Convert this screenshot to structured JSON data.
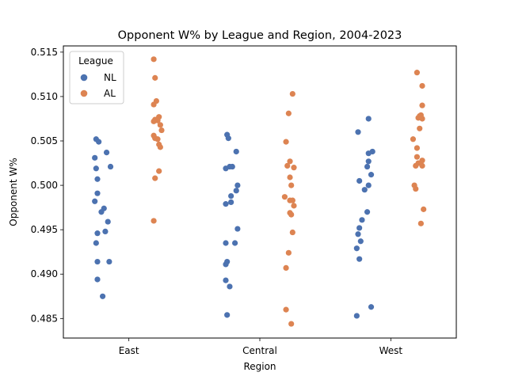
{
  "chart_data": {
    "type": "scatter",
    "subtype": "strip",
    "title": "Opponent W% by League and Region, 2004-2023",
    "xlabel": "Region",
    "ylabel": "Opponent W%",
    "categories": [
      "East",
      "Central",
      "West"
    ],
    "ylim": [
      0.4828,
      0.5157
    ],
    "yticks": [
      0.485,
      0.49,
      0.495,
      0.5,
      0.505,
      0.51,
      0.515
    ],
    "ytick_labels": [
      "0.485",
      "0.490",
      "0.495",
      "0.500",
      "0.505",
      "0.510",
      "0.515"
    ],
    "grid": false,
    "legend": {
      "title": "League",
      "position": "top-left"
    },
    "series": [
      {
        "name": "NL",
        "color": "#4c72b0",
        "points": [
          {
            "category": "East",
            "jitter": -0.05,
            "value": 0.5052
          },
          {
            "category": "East",
            "jitter": -0.03,
            "value": 0.5049
          },
          {
            "category": "East",
            "jitter": 0.03,
            "value": 0.5037
          },
          {
            "category": "East",
            "jitter": -0.06,
            "value": 0.5031
          },
          {
            "category": "East",
            "jitter": 0.06,
            "value": 0.5021
          },
          {
            "category": "East",
            "jitter": -0.05,
            "value": 0.5019
          },
          {
            "category": "East",
            "jitter": -0.04,
            "value": 0.5007
          },
          {
            "category": "East",
            "jitter": -0.04,
            "value": 0.4991
          },
          {
            "category": "East",
            "jitter": -0.06,
            "value": 0.4982
          },
          {
            "category": "East",
            "jitter": 0.01,
            "value": 0.4974
          },
          {
            "category": "East",
            "jitter": -0.01,
            "value": 0.497
          },
          {
            "category": "East",
            "jitter": 0.04,
            "value": 0.4959
          },
          {
            "category": "East",
            "jitter": 0.02,
            "value": 0.4948
          },
          {
            "category": "East",
            "jitter": -0.04,
            "value": 0.4946
          },
          {
            "category": "East",
            "jitter": -0.05,
            "value": 0.4935
          },
          {
            "category": "East",
            "jitter": -0.04,
            "value": 0.4914
          },
          {
            "category": "East",
            "jitter": 0.05,
            "value": 0.4914
          },
          {
            "category": "East",
            "jitter": -0.04,
            "value": 0.4894
          },
          {
            "category": "East",
            "jitter": 0.0,
            "value": 0.4875
          },
          {
            "category": "Central",
            "jitter": -0.05,
            "value": 0.5057
          },
          {
            "category": "Central",
            "jitter": -0.04,
            "value": 0.5053
          },
          {
            "category": "Central",
            "jitter": 0.02,
            "value": 0.5038
          },
          {
            "category": "Central",
            "jitter": -0.06,
            "value": 0.5019
          },
          {
            "category": "Central",
            "jitter": -0.03,
            "value": 0.5021
          },
          {
            "category": "Central",
            "jitter": -0.01,
            "value": 0.5021
          },
          {
            "category": "Central",
            "jitter": 0.03,
            "value": 0.5
          },
          {
            "category": "Central",
            "jitter": 0.02,
            "value": 0.4994
          },
          {
            "category": "Central",
            "jitter": -0.02,
            "value": 0.4988
          },
          {
            "category": "Central",
            "jitter": -0.02,
            "value": 0.4981
          },
          {
            "category": "Central",
            "jitter": -0.06,
            "value": 0.4979
          },
          {
            "category": "Central",
            "jitter": 0.03,
            "value": 0.4951
          },
          {
            "category": "Central",
            "jitter": -0.06,
            "value": 0.4935
          },
          {
            "category": "Central",
            "jitter": 0.01,
            "value": 0.4935
          },
          {
            "category": "Central",
            "jitter": -0.05,
            "value": 0.4914
          },
          {
            "category": "Central",
            "jitter": -0.06,
            "value": 0.4911
          },
          {
            "category": "Central",
            "jitter": -0.06,
            "value": 0.4893
          },
          {
            "category": "Central",
            "jitter": -0.03,
            "value": 0.4886
          },
          {
            "category": "Central",
            "jitter": -0.05,
            "value": 0.4854
          },
          {
            "category": "West",
            "jitter": 0.03,
            "value": 0.5075
          },
          {
            "category": "West",
            "jitter": -0.05,
            "value": 0.506
          },
          {
            "category": "West",
            "jitter": 0.06,
            "value": 0.5038
          },
          {
            "category": "West",
            "jitter": 0.03,
            "value": 0.5036
          },
          {
            "category": "West",
            "jitter": 0.03,
            "value": 0.5027
          },
          {
            "category": "West",
            "jitter": 0.02,
            "value": 0.5021
          },
          {
            "category": "West",
            "jitter": 0.05,
            "value": 0.5012
          },
          {
            "category": "West",
            "jitter": -0.04,
            "value": 0.5005
          },
          {
            "category": "West",
            "jitter": 0.03,
            "value": 0.5
          },
          {
            "category": "West",
            "jitter": 0.0,
            "value": 0.4995
          },
          {
            "category": "West",
            "jitter": 0.02,
            "value": 0.497
          },
          {
            "category": "West",
            "jitter": -0.02,
            "value": 0.4961
          },
          {
            "category": "West",
            "jitter": -0.04,
            "value": 0.4952
          },
          {
            "category": "West",
            "jitter": -0.05,
            "value": 0.4945
          },
          {
            "category": "West",
            "jitter": -0.03,
            "value": 0.4937
          },
          {
            "category": "West",
            "jitter": -0.06,
            "value": 0.4929
          },
          {
            "category": "West",
            "jitter": -0.04,
            "value": 0.4917
          },
          {
            "category": "West",
            "jitter": 0.05,
            "value": 0.4863
          },
          {
            "category": "West",
            "jitter": -0.06,
            "value": 0.4853
          }
        ]
      },
      {
        "name": "AL",
        "color": "#dd8452",
        "points": [
          {
            "category": "East",
            "jitter": -0.01,
            "value": 0.5142
          },
          {
            "category": "East",
            "jitter": 0.0,
            "value": 0.5121
          },
          {
            "category": "East",
            "jitter": 0.01,
            "value": 0.5095
          },
          {
            "category": "East",
            "jitter": -0.01,
            "value": 0.5091
          },
          {
            "category": "East",
            "jitter": 0.03,
            "value": 0.5077
          },
          {
            "category": "East",
            "jitter": 0.0,
            "value": 0.5074
          },
          {
            "category": "East",
            "jitter": 0.02,
            "value": 0.5073
          },
          {
            "category": "East",
            "jitter": -0.01,
            "value": 0.5072
          },
          {
            "category": "East",
            "jitter": 0.04,
            "value": 0.5068
          },
          {
            "category": "East",
            "jitter": 0.05,
            "value": 0.5062
          },
          {
            "category": "East",
            "jitter": -0.01,
            "value": 0.5056
          },
          {
            "category": "East",
            "jitter": 0.0,
            "value": 0.5053
          },
          {
            "category": "East",
            "jitter": 0.02,
            "value": 0.5052
          },
          {
            "category": "East",
            "jitter": 0.03,
            "value": 0.5046
          },
          {
            "category": "East",
            "jitter": 0.04,
            "value": 0.5043
          },
          {
            "category": "East",
            "jitter": 0.03,
            "value": 0.5016
          },
          {
            "category": "East",
            "jitter": 0.0,
            "value": 0.5008
          },
          {
            "category": "East",
            "jitter": -0.01,
            "value": 0.496
          },
          {
            "category": "Central",
            "jitter": 0.05,
            "value": 0.5103
          },
          {
            "category": "Central",
            "jitter": 0.02,
            "value": 0.5081
          },
          {
            "category": "Central",
            "jitter": 0.0,
            "value": 0.5049
          },
          {
            "category": "Central",
            "jitter": 0.03,
            "value": 0.5027
          },
          {
            "category": "Central",
            "jitter": 0.01,
            "value": 0.5022
          },
          {
            "category": "Central",
            "jitter": 0.06,
            "value": 0.502
          },
          {
            "category": "Central",
            "jitter": 0.03,
            "value": 0.5009
          },
          {
            "category": "Central",
            "jitter": 0.04,
            "value": 0.5
          },
          {
            "category": "Central",
            "jitter": -0.01,
            "value": 0.4987
          },
          {
            "category": "Central",
            "jitter": 0.05,
            "value": 0.4983
          },
          {
            "category": "Central",
            "jitter": 0.03,
            "value": 0.4983
          },
          {
            "category": "Central",
            "jitter": 0.06,
            "value": 0.4977
          },
          {
            "category": "Central",
            "jitter": 0.03,
            "value": 0.4969
          },
          {
            "category": "Central",
            "jitter": 0.04,
            "value": 0.4967
          },
          {
            "category": "Central",
            "jitter": 0.05,
            "value": 0.4947
          },
          {
            "category": "Central",
            "jitter": 0.02,
            "value": 0.4924
          },
          {
            "category": "Central",
            "jitter": 0.0,
            "value": 0.4907
          },
          {
            "category": "Central",
            "jitter": 0.0,
            "value": 0.486
          },
          {
            "category": "Central",
            "jitter": 0.04,
            "value": 0.4844
          },
          {
            "category": "West",
            "jitter": 0.0,
            "value": 0.5127
          },
          {
            "category": "West",
            "jitter": 0.04,
            "value": 0.5112
          },
          {
            "category": "West",
            "jitter": 0.04,
            "value": 0.509
          },
          {
            "category": "West",
            "jitter": 0.02,
            "value": 0.5078
          },
          {
            "category": "West",
            "jitter": 0.03,
            "value": 0.5079
          },
          {
            "category": "West",
            "jitter": 0.01,
            "value": 0.5076
          },
          {
            "category": "West",
            "jitter": 0.04,
            "value": 0.5075
          },
          {
            "category": "West",
            "jitter": 0.02,
            "value": 0.5064
          },
          {
            "category": "West",
            "jitter": -0.03,
            "value": 0.5052
          },
          {
            "category": "West",
            "jitter": 0.0,
            "value": 0.5042
          },
          {
            "category": "West",
            "jitter": 0.0,
            "value": 0.5032
          },
          {
            "category": "West",
            "jitter": 0.04,
            "value": 0.5028
          },
          {
            "category": "West",
            "jitter": 0.01,
            "value": 0.5025
          },
          {
            "category": "West",
            "jitter": -0.01,
            "value": 0.5022
          },
          {
            "category": "West",
            "jitter": 0.04,
            "value": 0.5022
          },
          {
            "category": "West",
            "jitter": -0.02,
            "value": 0.5
          },
          {
            "category": "West",
            "jitter": -0.01,
            "value": 0.4996
          },
          {
            "category": "West",
            "jitter": 0.05,
            "value": 0.4973
          },
          {
            "category": "West",
            "jitter": 0.03,
            "value": 0.4957
          }
        ]
      }
    ]
  }
}
